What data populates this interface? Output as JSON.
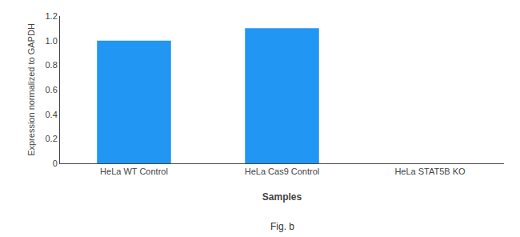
{
  "chart_data": {
    "type": "bar",
    "categories": [
      "HeLa WT Control",
      "HeLa Cas9 Control",
      "HeLa STAT5B KO"
    ],
    "values": [
      1.0,
      1.1,
      0.0
    ],
    "color": "#2196F3",
    "xlabel": "Samples",
    "ylabel": "Expression normalized to GAPDH",
    "ylim": [
      0,
      1.2
    ],
    "yticks": [
      0,
      0.2,
      0.4,
      0.6,
      0.8,
      {
        "value": 1.0,
        "label": "1.0"
      },
      1.2
    ],
    "grid": false,
    "annotations": [
      {
        "text": "Fig. b"
      }
    ]
  }
}
